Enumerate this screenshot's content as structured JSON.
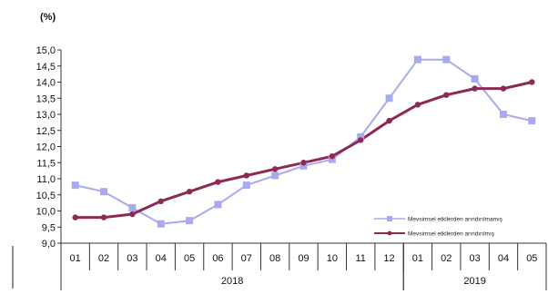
{
  "chart_data": {
    "type": "line",
    "unit_label": "(%)",
    "categories": [
      "01",
      "02",
      "03",
      "04",
      "05",
      "06",
      "07",
      "08",
      "09",
      "10",
      "11",
      "12",
      "01",
      "02",
      "03",
      "04",
      "05"
    ],
    "year_groups": [
      {
        "label": "2018",
        "start": 0,
        "end": 11
      },
      {
        "label": "2019",
        "start": 12,
        "end": 16
      }
    ],
    "ylim": [
      9.0,
      15.0
    ],
    "yticks": [
      "9,0",
      "9,5",
      "10,0",
      "10,5",
      "11,0",
      "11,5",
      "12,0",
      "12,5",
      "13,0",
      "13,5",
      "14,0",
      "14,5",
      "15,0"
    ],
    "series": [
      {
        "name": "Mevsimsel etkilerden arındırılmamış",
        "color": "#a9a9f0",
        "marker": "square",
        "values": [
          10.8,
          10.6,
          10.1,
          9.6,
          9.7,
          10.2,
          10.8,
          11.1,
          11.4,
          11.6,
          12.3,
          13.5,
          14.7,
          14.7,
          14.1,
          13.0,
          12.8
        ]
      },
      {
        "name": "Mevsimsel etkilerden arındırılmış",
        "color": "#8c2a55",
        "marker": "circle",
        "values": [
          9.8,
          9.8,
          9.9,
          10.3,
          10.6,
          10.9,
          11.1,
          11.3,
          11.5,
          11.7,
          12.2,
          12.8,
          13.3,
          13.6,
          13.8,
          13.8,
          14.0
        ]
      }
    ],
    "legend_position": "bottom-right"
  }
}
